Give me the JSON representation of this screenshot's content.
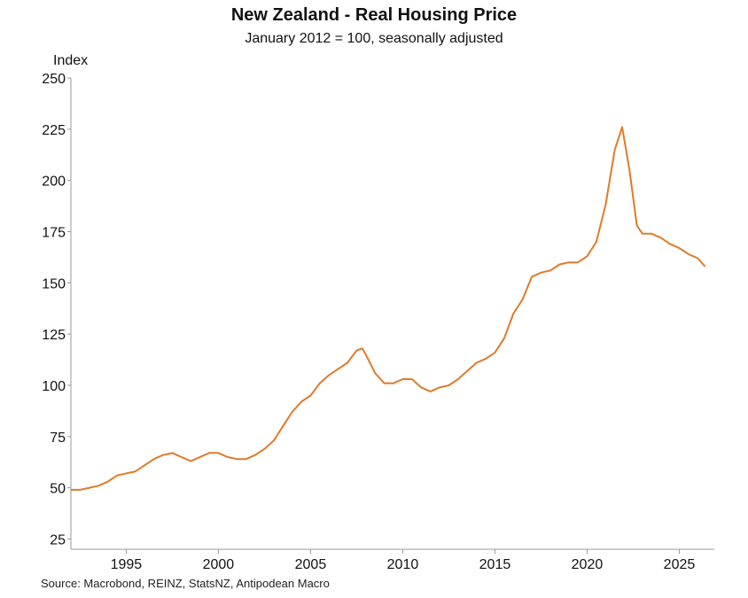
{
  "chart_data": {
    "type": "line",
    "title": "New Zealand - Real Housing Price",
    "subtitle": "January 2012 = 100, seasonally adjusted",
    "ylabel": "Index",
    "xlabel": "",
    "source": "Source: Macrobond, REINZ, StatsNZ, Antipodean Macro",
    "ylim": [
      20,
      250
    ],
    "xlim": [
      1992.0,
      2026.9
    ],
    "yticks": [
      "25",
      "50",
      "75",
      "100",
      "125",
      "150",
      "175",
      "200",
      "225",
      "250"
    ],
    "xticks": [
      "1995",
      "2000",
      "2005",
      "2010",
      "2015",
      "2020",
      "2025"
    ],
    "grid": false,
    "legend": "none",
    "line_color": "#e07b28",
    "series": [
      {
        "x": [
          1992.0,
          1992.5,
          1993.0,
          1993.5,
          1994.0,
          1994.5,
          1995.0,
          1995.5,
          1996.0,
          1996.5,
          1997.0,
          1997.5,
          1998.0,
          1998.5,
          1999.0,
          1999.5,
          2000.0,
          2000.5,
          2001.0,
          2001.5,
          2002.0,
          2002.5,
          2003.0,
          2003.5,
          2004.0,
          2004.5,
          2005.0,
          2005.5,
          2006.0,
          2006.5,
          2007.0,
          2007.5,
          2007.8,
          2008.0,
          2008.5,
          2009.0,
          2009.5,
          2010.0,
          2010.5,
          2011.0,
          2011.5,
          2012.0,
          2012.5,
          2013.0,
          2013.5,
          2014.0,
          2014.5,
          2015.0,
          2015.5,
          2016.0,
          2016.5,
          2017.0,
          2017.5,
          2018.0,
          2018.5,
          2019.0,
          2019.5,
          2020.0,
          2020.5,
          2021.0,
          2021.5,
          2021.9,
          2022.3,
          2022.7,
          2023.0,
          2023.5,
          2024.0,
          2024.5,
          2025.0,
          2025.5,
          2026.0,
          2026.4
        ],
        "values": [
          49,
          49,
          50,
          51,
          53,
          56,
          57,
          58,
          61,
          64,
          66,
          67,
          65,
          63,
          65,
          67,
          67,
          65,
          64,
          64,
          66,
          69,
          73,
          80,
          87,
          92,
          95,
          101,
          105,
          108,
          111,
          117,
          118,
          115,
          106,
          101,
          101,
          103,
          103,
          99,
          97,
          99,
          100,
          103,
          107,
          111,
          113,
          116,
          123,
          135,
          142,
          153,
          155,
          156,
          159,
          160,
          160,
          163,
          170,
          188,
          215,
          226,
          205,
          178,
          174,
          174,
          172,
          169,
          167,
          164,
          162,
          158
        ]
      }
    ]
  }
}
